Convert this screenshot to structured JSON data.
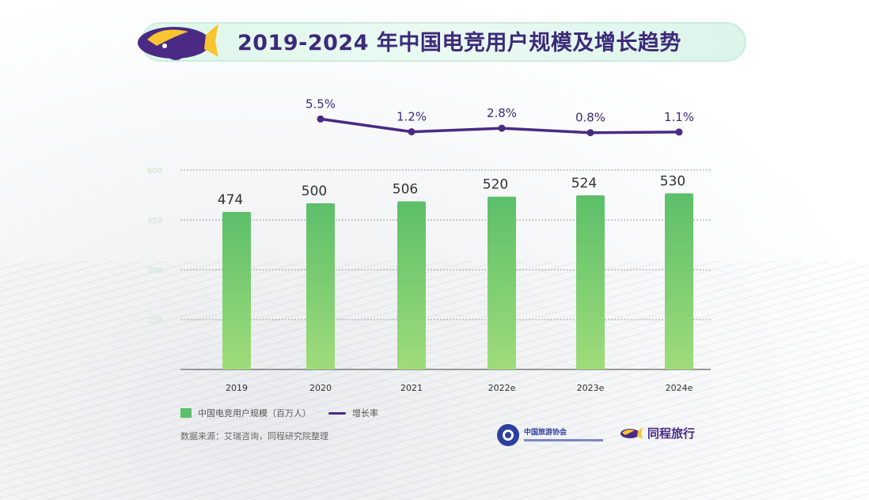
{
  "title": "2019-2024 年中国电竞用户规模及增长趋势",
  "legend": {
    "bar_label": "中国电竞用户规模（百万人）",
    "line_label": "增长率"
  },
  "source_text": "数据来源：艾瑞咨询，同程研究院整理",
  "logos": {
    "association_name": "中国旅游协会",
    "brand_name": "同程旅行",
    "mascot_icon": "whale-mascot-icon"
  },
  "colors": {
    "bar_top": "#5cbf6a",
    "bar_bottom": "#9fdc7a",
    "line": "#4a2a85",
    "title_text": "#3d2a7a",
    "title_pill": "#dff6ea"
  },
  "chart_data": {
    "type": "bar",
    "categories": [
      "2019",
      "2020",
      "2021",
      "2022e",
      "2023e",
      "2024e"
    ],
    "series": [
      {
        "name": "中国电竞用户规模（百万人）",
        "type": "bar",
        "values": [
          474,
          500,
          506,
          520,
          524,
          530
        ]
      },
      {
        "name": "增长率",
        "type": "line",
        "values": [
          null,
          5.5,
          1.2,
          2.8,
          0.8,
          1.1
        ],
        "labels": [
          "",
          "5.5%",
          "1.2%",
          "2.8%",
          "0.8%",
          "1.1%"
        ]
      }
    ],
    "yticks": [
      150,
      300,
      450,
      600
    ],
    "ylim": [
      0,
      600
    ],
    "grid": true
  }
}
